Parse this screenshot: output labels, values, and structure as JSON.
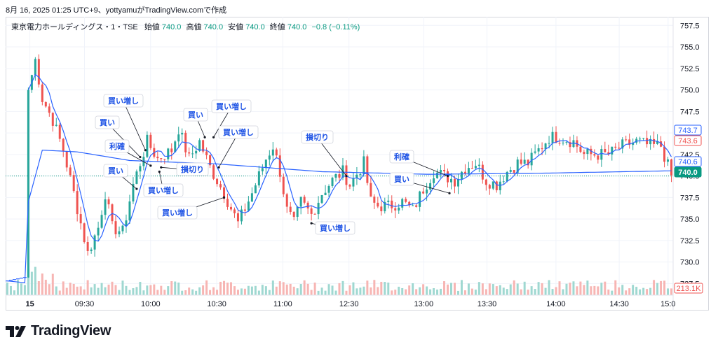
{
  "header_text": "8月 16, 2025 01:25 UTC+9、yottyamuがTradingView.comで作成",
  "logo_text": "TradingView",
  "colors": {
    "up": "#26a69a",
    "down": "#ef5350",
    "ma": "#2962ff",
    "grid": "#f0f3fa",
    "text": "#131722",
    "badge_dark": "#089981"
  },
  "chart_data": {
    "type": "candlestick",
    "legend": {
      "symbol": "東京電力ホールディングス・1・TSE",
      "open_label": "始値",
      "open": "740.0",
      "high_label": "高値",
      "high": "740.0",
      "low_label": "安値",
      "low": "740.0",
      "close_label": "終値",
      "close": "740.0",
      "change": "−0.8 (−0.11%)"
    },
    "ylim": [
      725.5,
      758.5
    ],
    "y_ticks": [
      "727.5",
      "730.0",
      "732.5",
      "735.0",
      "737.5",
      "740.0",
      "742.5",
      "745.0",
      "747.5",
      "750.0",
      "752.5",
      "755.0",
      "757.5"
    ],
    "x_ticks": [
      "15",
      "09:30",
      "10:00",
      "10:30",
      "11:00",
      "12:30",
      "13:00",
      "13:30",
      "14:00",
      "14:30",
      "15:0"
    ],
    "price_badges": [
      {
        "text": "743.7",
        "value": 743.7,
        "style": "outline-blue"
      },
      {
        "text": "743.6",
        "value": 743.6,
        "style": "outline-red"
      },
      {
        "text": "740.6",
        "value": 740.6,
        "style": "outline-blue"
      },
      {
        "text": "740.0",
        "value": 740.0,
        "style": "filled-green"
      }
    ],
    "volume_badge": "213.1K",
    "key_points": [
      {
        "bar": 0,
        "price": 727.8
      },
      {
        "bar": 5,
        "price": 728.2
      },
      {
        "bar": 6,
        "price": 750.0
      },
      {
        "bar": 8,
        "price": 753.5
      },
      {
        "bar": 10,
        "price": 749.0
      },
      {
        "bar": 13,
        "price": 746.5
      },
      {
        "bar": 16,
        "price": 743.0
      },
      {
        "bar": 19,
        "price": 738.0
      },
      {
        "bar": 23,
        "price": 731.0
      },
      {
        "bar": 26,
        "price": 734.0
      },
      {
        "bar": 28,
        "price": 738.0
      },
      {
        "bar": 30,
        "price": 734.0
      },
      {
        "bar": 33,
        "price": 733.5
      },
      {
        "bar": 36,
        "price": 739.0
      },
      {
        "bar": 40,
        "price": 744.0
      },
      {
        "bar": 43,
        "price": 742.0
      },
      {
        "bar": 47,
        "price": 743.0
      },
      {
        "bar": 49,
        "price": 745.5
      },
      {
        "bar": 52,
        "price": 742.0
      },
      {
        "bar": 55,
        "price": 744.0
      },
      {
        "bar": 58,
        "price": 741.0
      },
      {
        "bar": 62,
        "price": 738.0
      },
      {
        "bar": 66,
        "price": 734.5
      },
      {
        "bar": 70,
        "price": 738.0
      },
      {
        "bar": 74,
        "price": 742.0
      },
      {
        "bar": 76,
        "price": 743.5
      },
      {
        "bar": 78,
        "price": 740.5
      },
      {
        "bar": 80,
        "price": 736.0
      },
      {
        "bar": 82,
        "price": 734.5
      },
      {
        "bar": 84,
        "price": 737.0
      },
      {
        "bar": 87,
        "price": 735.5
      },
      {
        "bar": 90,
        "price": 738.0
      },
      {
        "bar": 93,
        "price": 739.5
      },
      {
        "bar": 96,
        "price": 740.5
      },
      {
        "bar": 98,
        "price": 739.0
      },
      {
        "bar": 102,
        "price": 741.5
      },
      {
        "bar": 104,
        "price": 737.0
      },
      {
        "bar": 106,
        "price": 736.5
      },
      {
        "bar": 109,
        "price": 736.5
      },
      {
        "bar": 113,
        "price": 737.0
      },
      {
        "bar": 116,
        "price": 736.0
      },
      {
        "bar": 119,
        "price": 738.5
      },
      {
        "bar": 122,
        "price": 740.5
      },
      {
        "bar": 125,
        "price": 740.0
      },
      {
        "bar": 128,
        "price": 739.5
      },
      {
        "bar": 131,
        "price": 741.0
      },
      {
        "bar": 134,
        "price": 741.5
      },
      {
        "bar": 137,
        "price": 739.5
      },
      {
        "bar": 140,
        "price": 739.0
      },
      {
        "bar": 143,
        "price": 740.5
      },
      {
        "bar": 146,
        "price": 741.5
      },
      {
        "bar": 149,
        "price": 741.5
      },
      {
        "bar": 152,
        "price": 743.0
      },
      {
        "bar": 155,
        "price": 744.5
      },
      {
        "bar": 158,
        "price": 744.5
      },
      {
        "bar": 162,
        "price": 744.0
      },
      {
        "bar": 165,
        "price": 742.5
      },
      {
        "bar": 168,
        "price": 742.5
      },
      {
        "bar": 172,
        "price": 742.5
      },
      {
        "bar": 176,
        "price": 743.5
      },
      {
        "bar": 180,
        "price": 744.0
      },
      {
        "bar": 184,
        "price": 743.5
      },
      {
        "bar": 187,
        "price": 743.5
      },
      {
        "bar": 190,
        "price": 740.0
      }
    ],
    "vwap_points": [
      {
        "bar": 0,
        "price": 727.8
      },
      {
        "bar": 5,
        "price": 727.6
      },
      {
        "bar": 6,
        "price": 737.0
      },
      {
        "bar": 10,
        "price": 743.0
      },
      {
        "bar": 20,
        "price": 742.8
      },
      {
        "bar": 35,
        "price": 741.8
      },
      {
        "bar": 60,
        "price": 741.4
      },
      {
        "bar": 90,
        "price": 740.5
      },
      {
        "bar": 120,
        "price": 740.2
      },
      {
        "bar": 150,
        "price": 740.3
      },
      {
        "bar": 190,
        "price": 740.6
      }
    ],
    "annotations": [
      {
        "label": "買い増し",
        "bar": 39.5,
        "price": 743.0,
        "box": [
          148,
          135
        ]
      },
      {
        "label": "買い",
        "bar": 38,
        "price": 742.2,
        "box": [
          136,
          166
        ]
      },
      {
        "label": "利確",
        "bar": 41,
        "price": 741.2,
        "box": [
          150,
          200
        ]
      },
      {
        "label": "買い",
        "bar": 37,
        "price": 738.5,
        "box": [
          148,
          235
        ]
      },
      {
        "label": "損切り",
        "bar": 44,
        "price": 741.0,
        "box": [
          252,
          233
        ]
      },
      {
        "label": "買い増し",
        "bar": 43.5,
        "price": 740.5,
        "box": [
          205,
          263
        ]
      },
      {
        "label": "買い",
        "bar": 56.5,
        "price": 744.5,
        "box": [
          262,
          155
        ]
      },
      {
        "label": "買い増し",
        "bar": 59,
        "price": 744.5,
        "box": [
          302,
          143
        ]
      },
      {
        "label": "買い増し",
        "bar": 60.5,
        "price": 741.0,
        "box": [
          312,
          180
        ]
      },
      {
        "label": "買い増し",
        "bar": 62,
        "price": 737.5,
        "box": [
          225,
          295
        ]
      },
      {
        "label": "損切り",
        "bar": 97,
        "price": 740.0,
        "box": [
          430,
          187
        ]
      },
      {
        "label": "買い増し",
        "bar": 87,
        "price": 734.5,
        "box": [
          450,
          317
        ]
      },
      {
        "label": "利確",
        "bar": 126,
        "price": 740.0,
        "box": [
          556,
          215
        ]
      },
      {
        "label": "買い",
        "bar": 126.5,
        "price": 738.0,
        "box": [
          556,
          247
        ]
      }
    ]
  }
}
